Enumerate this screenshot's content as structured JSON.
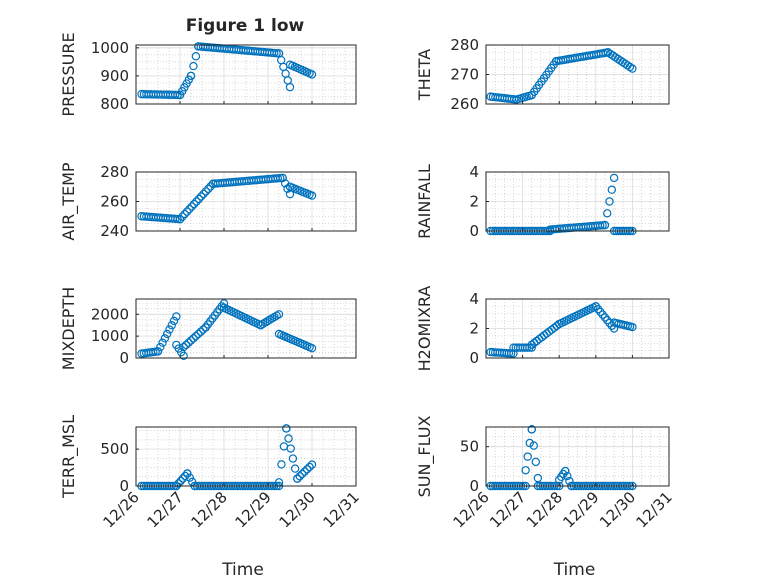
{
  "figure": {
    "title": "Figure 1 low",
    "marker_color": "#0072BD"
  },
  "chart_data": [
    {
      "type": "scatter",
      "panel": "PRESSURE",
      "ylabel": "PRESSURE",
      "xlabel": "",
      "xlim": [
        "12/26",
        "12/31"
      ],
      "ylim": [
        800,
        1010
      ],
      "yticks": [
        800,
        900,
        1000
      ],
      "xticks": [
        "12/26",
        "12/27",
        "12/28",
        "12/29",
        "12/30",
        "12/31"
      ],
      "x_tick_labels_shown": false,
      "grid": true,
      "minor_grid": true,
      "segments": [
        {
          "x": [
            "12/26 03:00",
            "12/27 00:00"
          ],
          "y": [
            835,
            832
          ]
        },
        {
          "x": [
            "12/27 00:00",
            "12/27 06:00"
          ],
          "y": [
            832,
            900
          ]
        },
        {
          "x": [
            "12/27 06:00",
            "12/27 10:00"
          ],
          "y": [
            900,
            1005
          ]
        },
        {
          "x": [
            "12/27 10:00",
            "12/29 06:00"
          ],
          "y": [
            1005,
            980
          ]
        },
        {
          "x": [
            "12/29 06:00",
            "12/29 12:00"
          ],
          "y": [
            980,
            860
          ]
        },
        {
          "x": [
            "12/29 12:00",
            "12/30 00:00"
          ],
          "y": [
            940,
            905
          ]
        }
      ]
    },
    {
      "type": "scatter",
      "panel": "THETA",
      "ylabel": "THETA",
      "xlabel": "",
      "xlim": [
        "12/26",
        "12/31"
      ],
      "ylim": [
        260,
        280
      ],
      "yticks": [
        260,
        270,
        280
      ],
      "xticks": [
        "12/26",
        "12/27",
        "12/28",
        "12/29",
        "12/30",
        "12/31"
      ],
      "x_tick_labels_shown": false,
      "grid": true,
      "minor_grid": true,
      "segments": [
        {
          "x": [
            "12/26 03:00",
            "12/26 20:00"
          ],
          "y": [
            262.5,
            261.5
          ]
        },
        {
          "x": [
            "12/26 20:00",
            "12/27 06:00"
          ],
          "y": [
            261.5,
            263
          ]
        },
        {
          "x": [
            "12/27 06:00",
            "12/27 22:00"
          ],
          "y": [
            263,
            274.5
          ]
        },
        {
          "x": [
            "12/27 22:00",
            "12/29 08:00"
          ],
          "y": [
            274.5,
            277.5
          ]
        },
        {
          "x": [
            "12/29 08:00",
            "12/30 00:00"
          ],
          "y": [
            277.5,
            272
          ]
        }
      ]
    },
    {
      "type": "scatter",
      "panel": "AIR_TEMP",
      "ylabel": "AIR_TEMP",
      "xlabel": "",
      "xlim": [
        "12/26",
        "12/31"
      ],
      "ylim": [
        240,
        280
      ],
      "yticks": [
        240,
        260,
        280
      ],
      "xticks": [
        "12/26",
        "12/27",
        "12/28",
        "12/29",
        "12/30",
        "12/31"
      ],
      "x_tick_labels_shown": false,
      "grid": true,
      "minor_grid": true,
      "segments": [
        {
          "x": [
            "12/26 03:00",
            "12/27 00:00"
          ],
          "y": [
            250,
            248
          ]
        },
        {
          "x": [
            "12/27 00:00",
            "12/27 18:00"
          ],
          "y": [
            248,
            272
          ]
        },
        {
          "x": [
            "12/27 18:00",
            "12/29 08:00"
          ],
          "y": [
            272,
            276
          ]
        },
        {
          "x": [
            "12/29 08:00",
            "12/29 12:00"
          ],
          "y": [
            276,
            265
          ]
        },
        {
          "x": [
            "12/29 12:00",
            "12/30 00:00"
          ],
          "y": [
            270,
            264
          ]
        }
      ]
    },
    {
      "type": "scatter",
      "panel": "RAINFALL",
      "ylabel": "RAINFALL",
      "xlabel": "",
      "xlim": [
        "12/26",
        "12/31"
      ],
      "ylim": [
        0,
        4
      ],
      "yticks": [
        0,
        2,
        4
      ],
      "xticks": [
        "12/26",
        "12/27",
        "12/28",
        "12/29",
        "12/30",
        "12/31"
      ],
      "x_tick_labels_shown": false,
      "grid": true,
      "minor_grid": true,
      "segments": [
        {
          "x": [
            "12/26 03:00",
            "12/27 18:00"
          ],
          "y": [
            0,
            0
          ]
        },
        {
          "x": [
            "12/27 18:00",
            "12/29 06:00"
          ],
          "y": [
            0.1,
            0.4
          ]
        },
        {
          "x": [
            "12/29 06:00",
            "12/29 12:00"
          ],
          "y": [
            0.4,
            3.6
          ]
        },
        {
          "x": [
            "12/29 12:00",
            "12/30 00:00"
          ],
          "y": [
            0,
            0
          ]
        }
      ]
    },
    {
      "type": "scatter",
      "panel": "MIXDEPTH",
      "ylabel": "MIXDEPTH",
      "xlabel": "",
      "xlim": [
        "12/26",
        "12/31"
      ],
      "ylim": [
        0,
        2700
      ],
      "yticks": [
        0,
        1000,
        2000
      ],
      "xticks": [
        "12/26",
        "12/27",
        "12/28",
        "12/29",
        "12/30",
        "12/31"
      ],
      "x_tick_labels_shown": false,
      "grid": true,
      "minor_grid": true,
      "segments": [
        {
          "x": [
            "12/26 03:00",
            "12/26 12:00"
          ],
          "y": [
            200,
            300
          ]
        },
        {
          "x": [
            "12/26 12:00",
            "12/26 22:00"
          ],
          "y": [
            300,
            1900
          ]
        },
        {
          "x": [
            "12/26 22:00",
            "12/27 02:00"
          ],
          "y": [
            600,
            100
          ]
        },
        {
          "x": [
            "12/27 02:00",
            "12/27 14:00"
          ],
          "y": [
            500,
            1400
          ]
        },
        {
          "x": [
            "12/27 14:00",
            "12/28 00:00"
          ],
          "y": [
            1400,
            2500
          ]
        },
        {
          "x": [
            "12/28 00:00",
            "12/28 20:00"
          ],
          "y": [
            2300,
            1500
          ]
        },
        {
          "x": [
            "12/28 20:00",
            "12/29 06:00"
          ],
          "y": [
            1500,
            2000
          ]
        },
        {
          "x": [
            "12/29 06:00",
            "12/30 00:00"
          ],
          "y": [
            1100,
            450
          ]
        }
      ]
    },
    {
      "type": "scatter",
      "panel": "H2OMIXRA",
      "ylabel": "H2OMIXRA",
      "xlabel": "",
      "xlim": [
        "12/26",
        "12/31"
      ],
      "ylim": [
        0,
        4
      ],
      "yticks": [
        0,
        2,
        4
      ],
      "xticks": [
        "12/26",
        "12/27",
        "12/28",
        "12/29",
        "12/30",
        "12/31"
      ],
      "x_tick_labels_shown": false,
      "grid": true,
      "minor_grid": true,
      "segments": [
        {
          "x": [
            "12/26 03:00",
            "12/26 18:00"
          ],
          "y": [
            0.4,
            0.3
          ]
        },
        {
          "x": [
            "12/26 18:00",
            "12/27 06:00"
          ],
          "y": [
            0.7,
            0.7
          ]
        },
        {
          "x": [
            "12/27 06:00",
            "12/28 00:00"
          ],
          "y": [
            0.9,
            2.3
          ]
        },
        {
          "x": [
            "12/28 00:00",
            "12/29 00:00"
          ],
          "y": [
            2.3,
            3.5
          ]
        },
        {
          "x": [
            "12/29 00:00",
            "12/29 12:00"
          ],
          "y": [
            3.5,
            2.0
          ]
        },
        {
          "x": [
            "12/29 12:00",
            "12/30 00:00"
          ],
          "y": [
            2.4,
            2.1
          ]
        }
      ]
    },
    {
      "type": "scatter",
      "panel": "TERR_MSL",
      "ylabel": "TERR_MSL",
      "xlabel": "Time",
      "xlim": [
        "12/26",
        "12/31"
      ],
      "ylim": [
        0,
        800
      ],
      "yticks": [
        0,
        500
      ],
      "xticks": [
        "12/26",
        "12/27",
        "12/28",
        "12/29",
        "12/30",
        "12/31"
      ],
      "x_tick_labels_shown": true,
      "grid": true,
      "minor_grid": true,
      "segments": [
        {
          "x": [
            "12/26 03:00",
            "12/26 22:00"
          ],
          "y": [
            0,
            0
          ]
        },
        {
          "x": [
            "12/26 22:00",
            "12/27 04:00"
          ],
          "y": [
            0,
            170
          ]
        },
        {
          "x": [
            "12/27 04:00",
            "12/27 08:00"
          ],
          "y": [
            170,
            0
          ]
        },
        {
          "x": [
            "12/27 08:00",
            "12/29 06:00"
          ],
          "y": [
            0,
            0
          ]
        },
        {
          "x": [
            "12/29 06:00",
            "12/29 10:00"
          ],
          "y": [
            50,
            780
          ]
        },
        {
          "x": [
            "12/29 10:00",
            "12/29 16:00"
          ],
          "y": [
            780,
            100
          ]
        },
        {
          "x": [
            "12/29 16:00",
            "12/30 00:00"
          ],
          "y": [
            100,
            290
          ]
        }
      ]
    },
    {
      "type": "scatter",
      "panel": "SUN_FLUX",
      "ylabel": "SUN_FLUX",
      "xlabel": "Time",
      "xlim": [
        "12/26",
        "12/31"
      ],
      "ylim": [
        0,
        75
      ],
      "yticks": [
        0,
        50
      ],
      "xticks": [
        "12/26",
        "12/27",
        "12/28",
        "12/29",
        "12/30",
        "12/31"
      ],
      "x_tick_labels_shown": true,
      "grid": true,
      "minor_grid": true,
      "segments": [
        {
          "x": [
            "12/26 03:00",
            "12/27 02:00"
          ],
          "y": [
            0,
            0
          ]
        },
        {
          "x": [
            "12/27 02:00",
            "12/27 06:00"
          ],
          "y": [
            20,
            72
          ]
        },
        {
          "x": [
            "12/27 06:00",
            "12/27 10:00"
          ],
          "y": [
            72,
            10
          ]
        },
        {
          "x": [
            "12/27 10:00",
            "12/28 00:00"
          ],
          "y": [
            0,
            0
          ]
        },
        {
          "x": [
            "12/28 00:00",
            "12/28 04:00"
          ],
          "y": [
            8,
            19
          ]
        },
        {
          "x": [
            "12/28 04:00",
            "12/28 08:00"
          ],
          "y": [
            19,
            0
          ]
        },
        {
          "x": [
            "12/28 08:00",
            "12/30 00:00"
          ],
          "y": [
            0,
            0
          ]
        }
      ]
    }
  ]
}
